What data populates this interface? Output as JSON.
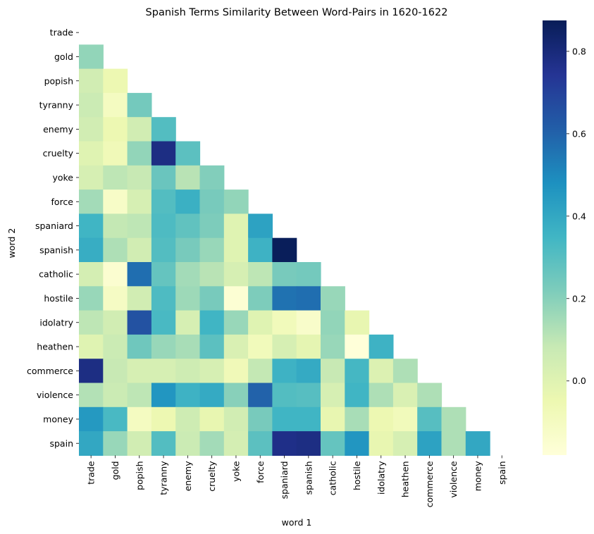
{
  "chart_data": {
    "type": "heatmap",
    "title": "Spanish Terms Similarity Between Word-Pairs in 1620-1622",
    "xlabel": "word 1",
    "ylabel": "word 2",
    "mask": "upper triangle including diagonal",
    "words": [
      "trade",
      "gold",
      "popish",
      "tyranny",
      "enemy",
      "cruelty",
      "yoke",
      "force",
      "spaniard",
      "spanish",
      "catholic",
      "hostile",
      "idolatry",
      "heathen",
      "commerce",
      "violence",
      "money",
      "spain"
    ],
    "matrix": [
      [],
      [
        0.18
      ],
      [
        0.05,
        -0.05
      ],
      [
        0.07,
        -0.1,
        0.24
      ],
      [
        0.05,
        -0.05,
        0.05,
        0.31
      ],
      [
        0.0,
        -0.07,
        0.18,
        0.78,
        0.29
      ],
      [
        0.03,
        0.1,
        0.08,
        0.26,
        0.11,
        0.21
      ],
      [
        0.15,
        -0.12,
        0.03,
        0.31,
        0.37,
        0.23,
        0.18
      ],
      [
        0.35,
        0.09,
        0.1,
        0.32,
        0.28,
        0.22,
        0.0,
        0.42
      ],
      [
        0.38,
        0.13,
        0.05,
        0.31,
        0.23,
        0.17,
        0.0,
        0.36,
        0.87
      ],
      [
        0.04,
        -0.15,
        0.57,
        0.27,
        0.15,
        0.11,
        0.03,
        0.1,
        0.23,
        0.24
      ],
      [
        0.17,
        -0.11,
        0.05,
        0.32,
        0.16,
        0.23,
        -0.16,
        0.22,
        0.56,
        0.57,
        0.17
      ],
      [
        0.1,
        0.05,
        0.65,
        0.33,
        0.03,
        0.35,
        0.17,
        0.0,
        -0.08,
        -0.13,
        0.18,
        -0.03
      ],
      [
        0.0,
        0.07,
        0.25,
        0.17,
        0.14,
        0.29,
        0.02,
        -0.08,
        0.03,
        -0.02,
        0.17,
        -0.18,
        0.36
      ],
      [
        0.78,
        0.08,
        0.03,
        0.03,
        0.06,
        0.03,
        -0.07,
        0.09,
        0.36,
        0.39,
        0.08,
        0.34,
        0.01,
        0.13
      ],
      [
        0.12,
        0.07,
        0.1,
        0.46,
        0.36,
        0.39,
        0.2,
        0.6,
        0.31,
        0.3,
        0.03,
        0.35,
        0.13,
        0.02,
        0.13
      ],
      [
        0.45,
        0.33,
        -0.1,
        -0.05,
        0.06,
        -0.03,
        0.05,
        0.23,
        0.35,
        0.35,
        -0.03,
        0.14,
        -0.05,
        -0.08,
        0.3,
        0.13
      ],
      [
        0.4,
        0.17,
        0.05,
        0.31,
        0.07,
        0.15,
        0.04,
        0.29,
        0.77,
        0.78,
        0.27,
        0.46,
        -0.03,
        0.03,
        0.42,
        0.13,
        0.4
      ]
    ],
    "colormap": "YlGnBu",
    "vmin": -0.18,
    "vmax": 0.875,
    "colorbar_ticks": [
      "0.0",
      "0.2",
      "0.4",
      "0.6",
      "0.8"
    ],
    "colorbar_tick_values": [
      0.0,
      0.2,
      0.4,
      0.6,
      0.8
    ],
    "grid": false,
    "legend": "colorbar-right"
  }
}
